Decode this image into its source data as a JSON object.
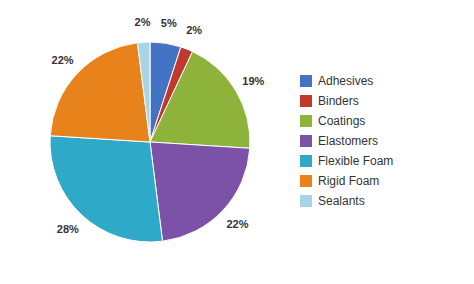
{
  "chart_data": {
    "type": "pie",
    "categories": [
      "Adhesives",
      "Binders",
      "Coatings",
      "Elastomers",
      "Flexible Foam",
      "Rigid Foam",
      "Sealants"
    ],
    "values": [
      5,
      2,
      19,
      22,
      28,
      22,
      2
    ],
    "value_labels": [
      "5%",
      "2%",
      "19%",
      "22%",
      "28%",
      "22%",
      "2%"
    ],
    "colors": [
      "#4472C4",
      "#C0392B",
      "#8DB33A",
      "#7B52A8",
      "#2EAAC8",
      "#E8821A",
      "#A8D4E8"
    ],
    "data_labels": true,
    "legend": "right"
  }
}
